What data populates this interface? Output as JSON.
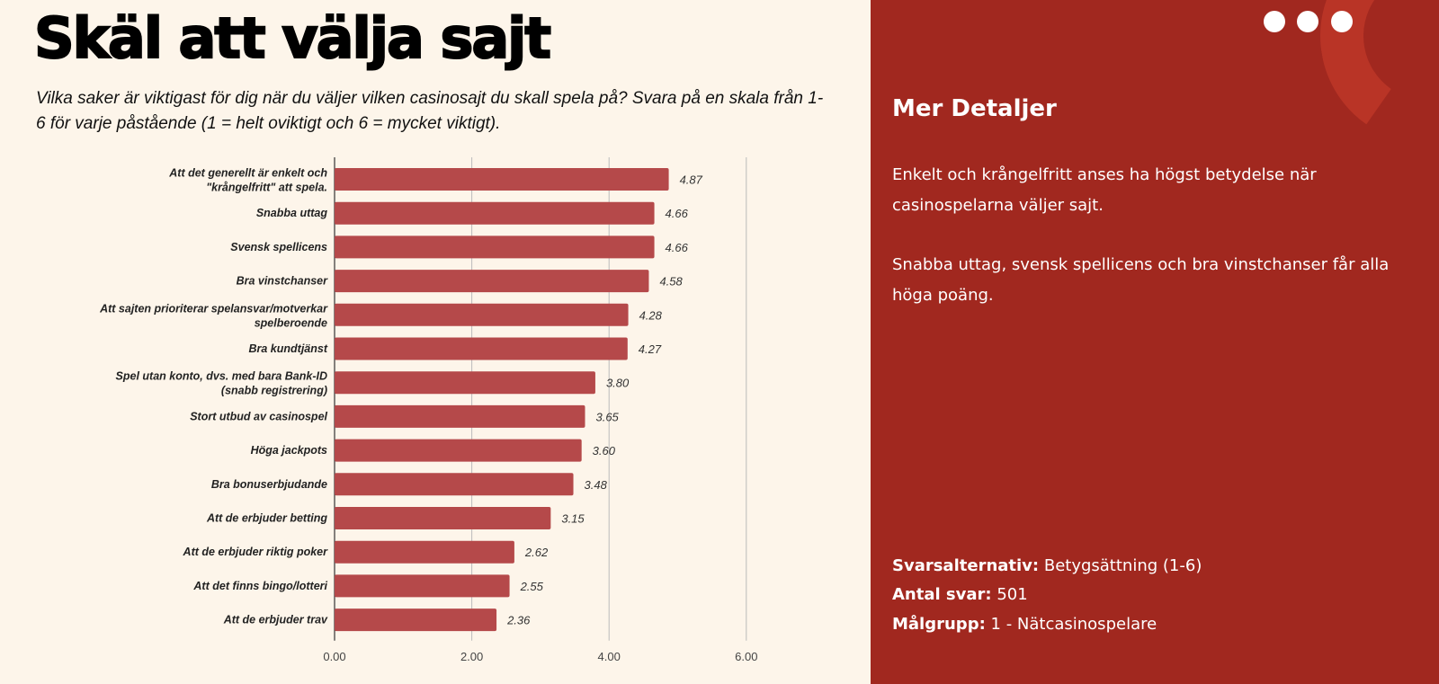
{
  "title": "Skäl att välja sajt",
  "subtitle": "Vilka saker är viktigast för dig när du väljer vilken casinosajt du skall spela på? Svara på en skala från 1-6 för varje påstående (1 = helt oviktigt och 6 = mycket viktigt).",
  "chart_data": {
    "type": "bar",
    "orientation": "horizontal",
    "categories": [
      "Att det generellt är enkelt och \"krångelfritt\" att spela.",
      "Snabba uttag",
      "Svensk spellicens",
      "Bra vinstchanser",
      "Att sajten prioriterar spelansvar/motverkar spelberoende",
      "Bra kundtjänst",
      "Spel utan konto, dvs. med bara Bank-ID (snabb registrering)",
      "Stort utbud av casinospel",
      "Höga jackpots",
      "Bra bonuserbjudande",
      "Att de erbjuder betting",
      "Att de erbjuder riktig poker",
      "Att det finns bingo/lotteri",
      "Att de erbjuder trav"
    ],
    "values": [
      4.87,
      4.66,
      4.66,
      4.58,
      4.28,
      4.27,
      3.8,
      3.65,
      3.6,
      3.48,
      3.15,
      2.62,
      2.55,
      2.36
    ],
    "data_labels": [
      "4.87",
      "4.66",
      "4.66",
      "4.58",
      "4.28",
      "4.27",
      "3.80",
      "3.65",
      "3.60",
      "3.48",
      "3.15",
      "2.62",
      "2.55",
      "2.36"
    ],
    "xlim": [
      0,
      6
    ],
    "xticks": [
      "0.00",
      "2.00",
      "4.00",
      "6.00"
    ],
    "grid": true,
    "bar_color": "#b5494a"
  },
  "details": {
    "title": "Mer Detaljer",
    "p1": "Enkelt och krångelfritt anses ha högst betydelse när casinospelarna väljer sajt.",
    "p2": "Snabba uttag, svensk spellicens och bra vinstchanser får alla höga poäng.",
    "svarsalternativ_label": "Svarsalternativ:",
    "svarsalternativ": "Betygsättning (1-6)",
    "antal_label": "Antal svar:",
    "antal": "501",
    "malgrupp_label": "Målgrupp:",
    "malgrupp": "1 - Nätcasinospelare"
  },
  "colors": {
    "panel": "#a1281f",
    "background": "#fdf5ea"
  }
}
